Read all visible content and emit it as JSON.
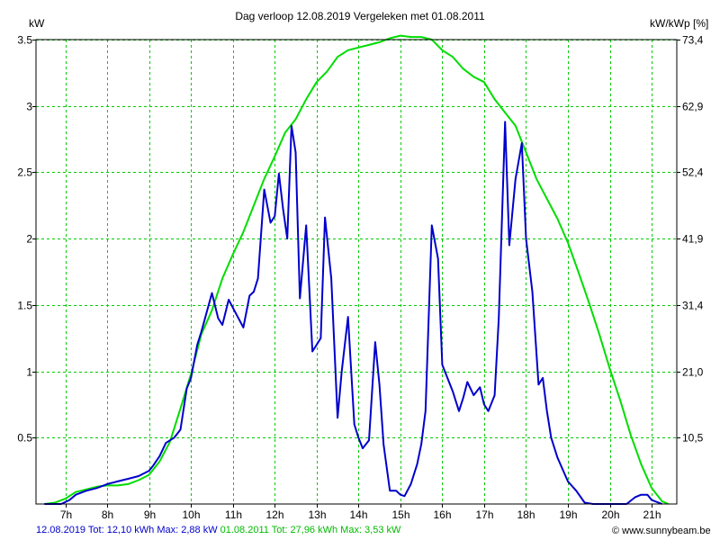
{
  "title": "Dag  verloop 12.08.2019   Vergeleken met 01.08.2011",
  "ylabel_left": "kW",
  "ylabel_right": "kW/kWp [%]",
  "footer": {
    "series1": "12.08.2019 Tot: 12,10 kWh Max: 2,88 kW",
    "series2": "01.08.2011 Tot: 27,96 kWh Max: 3,53 kW"
  },
  "credit": "© www.sunnybeam.be",
  "colors": {
    "series1": "#0000cc",
    "series2": "#00dd00",
    "grid": "#00cc00",
    "axis": "#000000"
  },
  "chart_data": {
    "type": "line",
    "title": "Dag  verloop 12.08.2019   Vergeleken met 01.08.2011",
    "xlabel": "",
    "ylabel": "kW",
    "ylabel_right": "kW/kWp [%]",
    "xlim": [
      6.3,
      21.6
    ],
    "ylim": [
      0,
      3.5
    ],
    "grid": true,
    "x_ticks": [
      {
        "v": 7,
        "label": "7h"
      },
      {
        "v": 8,
        "label": "8h"
      },
      {
        "v": 9,
        "label": "9h"
      },
      {
        "v": 10,
        "label": "10h"
      },
      {
        "v": 11,
        "label": "11h"
      },
      {
        "v": 12,
        "label": "12h"
      },
      {
        "v": 13,
        "label": "13h"
      },
      {
        "v": 14,
        "label": "14h"
      },
      {
        "v": 15,
        "label": "15h"
      },
      {
        "v": 16,
        "label": "16h"
      },
      {
        "v": 17,
        "label": "17h"
      },
      {
        "v": 18,
        "label": "18h"
      },
      {
        "v": 19,
        "label": "19h"
      },
      {
        "v": 20,
        "label": "20h"
      },
      {
        "v": 21,
        "label": "21h"
      }
    ],
    "y_ticks_left": [
      {
        "v": 0.5,
        "label": "0.5"
      },
      {
        "v": 1,
        "label": "1"
      },
      {
        "v": 1.5,
        "label": "1.5"
      },
      {
        "v": 2,
        "label": "2"
      },
      {
        "v": 2.5,
        "label": "2.5"
      },
      {
        "v": 3,
        "label": "3"
      },
      {
        "v": 3.5,
        "label": "3.5"
      }
    ],
    "y_ticks_right": [
      {
        "v": 0.5,
        "label": "10,5"
      },
      {
        "v": 1,
        "label": "21,0"
      },
      {
        "v": 1.5,
        "label": "31,4"
      },
      {
        "v": 2,
        "label": "41,9"
      },
      {
        "v": 2.5,
        "label": "52,4"
      },
      {
        "v": 3,
        "label": "62,9"
      },
      {
        "v": 3.5,
        "label": "73,4"
      }
    ],
    "series": [
      {
        "name": "12.08.2019",
        "color": "#0000cc",
        "x": [
          6.5,
          6.9,
          7.1,
          7.25,
          7.5,
          7.75,
          8.0,
          8.25,
          8.5,
          8.75,
          9.0,
          9.1,
          9.25,
          9.4,
          9.5,
          9.6,
          9.75,
          9.9,
          10.0,
          10.15,
          10.25,
          10.5,
          10.65,
          10.75,
          10.9,
          11.0,
          11.1,
          11.25,
          11.4,
          11.5,
          11.6,
          11.75,
          11.9,
          12.0,
          12.1,
          12.2,
          12.3,
          12.4,
          12.5,
          12.6,
          12.75,
          12.9,
          13.0,
          13.1,
          13.2,
          13.35,
          13.5,
          13.6,
          13.75,
          13.9,
          14.0,
          14.1,
          14.25,
          14.4,
          14.5,
          14.6,
          14.75,
          14.9,
          15.0,
          15.1,
          15.25,
          15.4,
          15.5,
          15.6,
          15.75,
          15.9,
          16.0,
          16.25,
          16.4,
          16.5,
          16.6,
          16.75,
          16.9,
          17.0,
          17.1,
          17.25,
          17.35,
          17.5,
          17.6,
          17.75,
          17.9,
          18.0,
          18.15,
          18.3,
          18.4,
          18.5,
          18.6,
          18.75,
          19.0,
          19.2,
          19.4,
          19.6,
          19.8,
          20.0,
          20.2,
          20.4,
          20.6,
          20.75,
          20.9,
          21.0,
          21.25
        ],
        "values": [
          0,
          0,
          0.03,
          0.07,
          0.1,
          0.12,
          0.15,
          0.17,
          0.19,
          0.21,
          0.25,
          0.29,
          0.36,
          0.46,
          0.48,
          0.5,
          0.56,
          0.87,
          0.95,
          1.2,
          1.3,
          1.59,
          1.4,
          1.35,
          1.54,
          1.48,
          1.42,
          1.33,
          1.57,
          1.6,
          1.7,
          2.37,
          2.12,
          2.17,
          2.49,
          2.22,
          2.0,
          2.85,
          2.65,
          1.55,
          2.1,
          1.15,
          1.2,
          1.25,
          2.16,
          1.7,
          0.65,
          1.0,
          1.41,
          0.6,
          0.5,
          0.42,
          0.48,
          1.22,
          0.9,
          0.45,
          0.1,
          0.1,
          0.07,
          0.06,
          0.15,
          0.3,
          0.45,
          0.7,
          2.1,
          1.85,
          1.05,
          0.85,
          0.7,
          0.8,
          0.92,
          0.82,
          0.88,
          0.75,
          0.7,
          0.82,
          1.4,
          2.88,
          1.95,
          2.45,
          2.72,
          2.0,
          1.6,
          0.9,
          0.95,
          0.7,
          0.5,
          0.35,
          0.17,
          0.1,
          0.01,
          0.0,
          0.0,
          0.0,
          0.0,
          0.0,
          0.05,
          0.07,
          0.07,
          0.03,
          0.0
        ]
      },
      {
        "name": "01.08.2011",
        "color": "#00dd00",
        "x": [
          6.5,
          6.75,
          7.0,
          7.25,
          7.5,
          7.75,
          8.0,
          8.25,
          8.5,
          8.75,
          9.0,
          9.25,
          9.5,
          9.75,
          10.0,
          10.25,
          10.5,
          10.75,
          11.0,
          11.25,
          11.5,
          11.75,
          12.0,
          12.25,
          12.5,
          12.75,
          13.0,
          13.25,
          13.5,
          13.75,
          14.0,
          14.25,
          14.5,
          14.75,
          15.0,
          15.25,
          15.5,
          15.75,
          16.0,
          16.25,
          16.5,
          16.75,
          17.0,
          17.25,
          17.5,
          17.75,
          18.0,
          18.25,
          18.5,
          18.75,
          19.0,
          19.25,
          19.5,
          19.75,
          20.0,
          20.25,
          20.5,
          20.75,
          21.0,
          21.25,
          21.4
        ],
        "values": [
          0,
          0.01,
          0.04,
          0.09,
          0.11,
          0.13,
          0.14,
          0.14,
          0.15,
          0.18,
          0.22,
          0.32,
          0.47,
          0.72,
          0.98,
          1.28,
          1.46,
          1.7,
          1.88,
          2.05,
          2.25,
          2.45,
          2.62,
          2.8,
          2.9,
          3.05,
          3.18,
          3.26,
          3.37,
          3.42,
          3.44,
          3.46,
          3.48,
          3.51,
          3.53,
          3.52,
          3.52,
          3.5,
          3.42,
          3.37,
          3.28,
          3.22,
          3.18,
          3.05,
          2.95,
          2.85,
          2.65,
          2.45,
          2.3,
          2.15,
          1.97,
          1.75,
          1.52,
          1.28,
          1.02,
          0.78,
          0.52,
          0.3,
          0.12,
          0.02,
          0
        ]
      }
    ]
  }
}
